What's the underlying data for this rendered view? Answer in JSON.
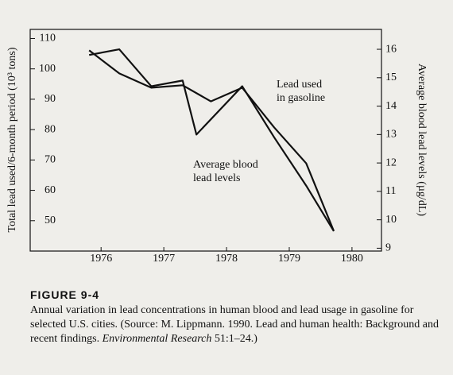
{
  "chart_data": {
    "type": "line",
    "y_label": "Total lead used/6-month period (10³ tons)",
    "y2_label": "Average blood lead levels (µg/dL)",
    "xlim": [
      1974.87,
      1980.47
    ],
    "xticks": [
      1976,
      1977,
      1978,
      1979,
      1980
    ],
    "ylim": [
      40,
      113
    ],
    "yticks": [
      50,
      60,
      70,
      80,
      90,
      100,
      110
    ],
    "y2lim": [
      8.9,
      16.7
    ],
    "y2ticks": [
      9,
      10,
      11,
      12,
      13,
      14,
      15,
      16
    ],
    "series": [
      {
        "name": "Lead used in gasoline",
        "color": "#111111",
        "x": [
          1975.81,
          1976.29,
          1976.8,
          1977.3,
          1977.75,
          1978.25,
          1978.76,
          1979.27,
          1979.71
        ],
        "values": [
          106.1,
          98.5,
          93.8,
          94.6,
          89.3,
          93.8,
          80.7,
          68.9,
          46.6
        ]
      },
      {
        "name": "Average blood lead levels",
        "color": "#111111",
        "axis": "y2",
        "x": [
          1975.81,
          1976.29,
          1976.8,
          1977.3,
          1977.52,
          1978.25,
          1978.76,
          1979.27,
          1979.71
        ],
        "values": [
          15.8,
          16.0,
          14.7,
          14.9,
          13.0,
          14.7,
          12.9,
          11.2,
          9.6
        ]
      }
    ],
    "annotations": [
      {
        "lines": [
          "Lead used",
          "in gasoline"
        ]
      },
      {
        "lines": [
          "Average blood",
          "lead levels"
        ]
      }
    ]
  },
  "caption": {
    "label": "FIGURE 9-4",
    "text": "Annual variation in lead concentrations in human blood and lead usage in gasoline for selected U.S. cities. (Source: M. Lippmann. 1990. Lead and human health: Background and recent findings. ",
    "journal": "Environmental Research",
    "end": " 51:1–24.)"
  }
}
